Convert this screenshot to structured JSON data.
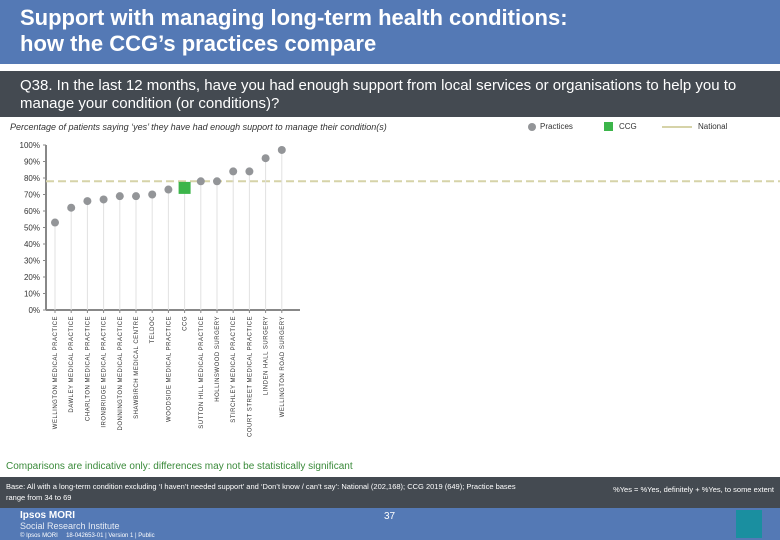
{
  "header": {
    "title_line1": "Support with managing long-term health conditions:",
    "title_line2": "how the CCG’s practices compare"
  },
  "question": "Q38. In the last 12 months, have you had enough support from local services or organisations to help you to manage your condition (or conditions)?",
  "subtitle": "Percentage of patients saying ‘yes’ they have had enough support to manage their condition(s)",
  "legend": {
    "practices": "Practices",
    "ccg": "CCG",
    "national": "National"
  },
  "colors": {
    "practice": "#939598",
    "ccg": "#3cb54a",
    "national": "#d6d3a8",
    "header": "#5479b5",
    "dark": "#444a51"
  },
  "chart_data": {
    "type": "scatter",
    "ylim": [
      0,
      100
    ],
    "yticks": [
      "0%",
      "10%",
      "20%",
      "30%",
      "40%",
      "50%",
      "60%",
      "70%",
      "80%",
      "90%",
      "100%"
    ],
    "categories": [
      "WELLINGTON MEDICAL PRACTICE",
      "DAWLEY MEDICAL PRACTICE",
      "CHARLTON MEDICAL PRACTICE",
      "IRONBRIDGE MEDICAL PRACTICE",
      "DONNINGTON MEDICAL PRACTICE",
      "SHAWBIRCH MEDICAL CENTRE",
      "TELDOC",
      "WOODSIDE MEDICAL PRACTICE",
      "CCG",
      "SUTTON HILL MEDICAL PRACTICE",
      "HOLLINSWOOD SURGERY",
      "STIRCHLEY MEDICAL PRACTICE",
      "COURT STREET MEDICAL PRACTICE",
      "LINDEN HALL SURGERY",
      "WELLINGTON ROAD SURGERY"
    ],
    "values": [
      53,
      62,
      66,
      67,
      69,
      69,
      70,
      73,
      74,
      78,
      78,
      84,
      84,
      92,
      97
    ],
    "ccg_index": 8,
    "national": 78,
    "grid": false
  },
  "note": "Comparisons are indicative only: differences may not be statistically significant",
  "base": {
    "text": "Base: All with a long-term condition excluding ‘I haven’t needed support’ and ‘Don’t know / can’t say’: National (202,168); CCG 2019 (649); Practice bases range from 34 to 69",
    "right": "%Yes = %Yes, definitely + %Yes, to some extent"
  },
  "footer": {
    "brand": "Ipsos MORI",
    "brand_sub": "Social Research Institute",
    "copyright": "© Ipsos MORI     18-042653-01 | Version 1 | Public",
    "page": "37",
    "logo": "Ipsos"
  }
}
